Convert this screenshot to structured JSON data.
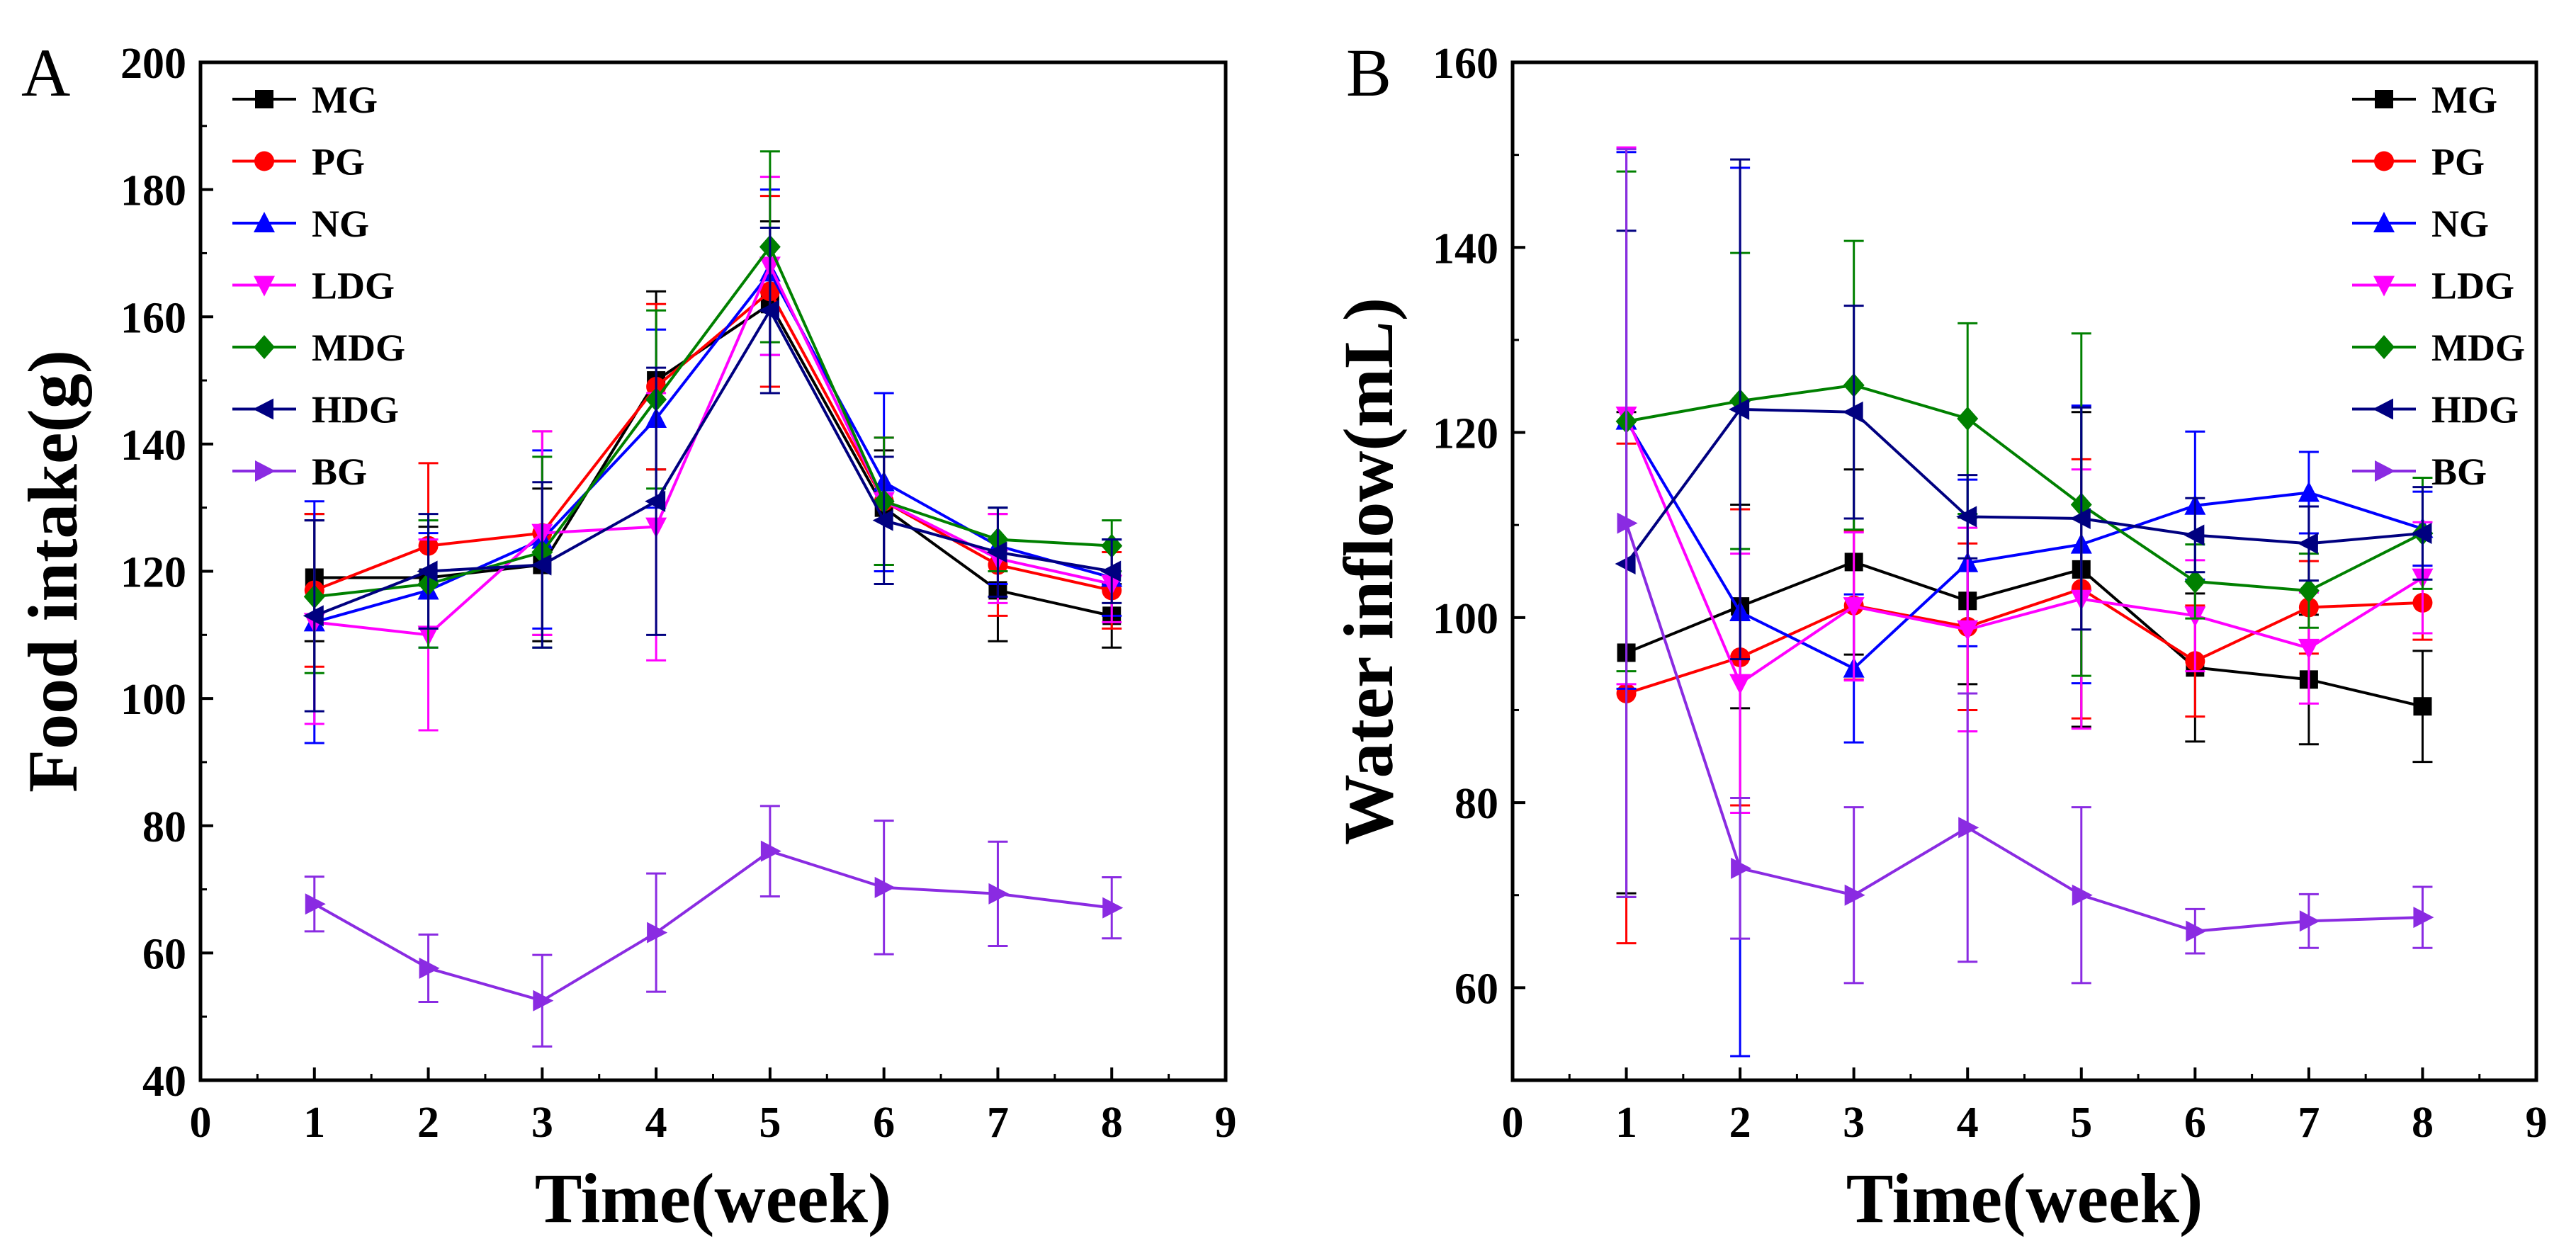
{
  "figure": {
    "background": "#ffffff"
  },
  "chart_data": [
    {
      "id": "A",
      "type": "line",
      "panel_label": "A",
      "title": "",
      "xlabel": "Time(week)",
      "ylabel": "Food intake(g)",
      "xlim": [
        0,
        9
      ],
      "ylim": [
        40,
        200
      ],
      "xticks": [
        0,
        1,
        2,
        3,
        4,
        5,
        6,
        7,
        8,
        9
      ],
      "yticks": [
        40,
        60,
        80,
        100,
        120,
        140,
        160,
        180,
        200
      ],
      "grid": false,
      "legend_position": "top-left",
      "x": [
        1,
        2,
        3,
        4,
        5,
        6,
        7,
        8
      ],
      "series": [
        {
          "name": "MG",
          "color": "#000000",
          "marker": "square",
          "values": [
            119,
            119,
            121,
            150,
            162,
            130,
            117,
            113
          ],
          "errors": [
            10,
            8,
            12,
            14,
            13,
            9,
            8,
            5
          ]
        },
        {
          "name": "PG",
          "color": "#ff0000",
          "marker": "circle",
          "values": [
            117,
            124,
            126,
            149,
            164,
            131,
            121,
            117
          ],
          "errors": [
            12,
            13,
            16,
            13,
            15,
            10,
            8,
            6
          ]
        },
        {
          "name": "NG",
          "color": "#0000ff",
          "marker": "triangle-up",
          "values": [
            112,
            117,
            125,
            144,
            167,
            134,
            124,
            119
          ],
          "errors": [
            19,
            9,
            14,
            14,
            13,
            14,
            6,
            6
          ]
        },
        {
          "name": "LDG",
          "color": "#ff00ff",
          "marker": "triangle-down",
          "values": [
            112,
            110,
            126,
            127,
            168,
            131,
            122,
            118
          ],
          "errors": [
            16,
            15,
            16,
            21,
            14,
            10,
            7,
            6
          ]
        },
        {
          "name": "MDG",
          "color": "#008000",
          "marker": "diamond",
          "values": [
            116,
            118,
            123,
            147,
            171,
            131,
            125,
            124
          ],
          "errors": [
            12,
            10,
            15,
            14,
            15,
            10,
            5,
            4
          ]
        },
        {
          "name": "HDG",
          "color": "#000080",
          "marker": "triangle-left",
          "values": [
            113,
            120,
            121,
            131,
            161,
            128,
            123,
            120
          ],
          "errors": [
            15,
            9,
            13,
            21,
            13,
            10,
            7,
            5
          ]
        },
        {
          "name": "BG",
          "color": "#8a2be2",
          "marker": "triangle-right",
          "values": [
            67.7,
            57.6,
            52.5,
            63.2,
            76.0,
            70.3,
            69.3,
            67.1
          ],
          "errors": [
            4.3,
            5.3,
            7.2,
            9.3,
            7.1,
            10.5,
            8.2,
            4.8
          ]
        }
      ]
    },
    {
      "id": "B",
      "type": "line",
      "panel_label": "B",
      "title": "",
      "xlabel": "Time(week)",
      "ylabel": "Water inflow(mL)",
      "xlim": [
        0,
        9
      ],
      "ylim": [
        50,
        160
      ],
      "xticks": [
        0,
        1,
        2,
        3,
        4,
        5,
        6,
        7,
        8,
        9
      ],
      "yticks": [
        60,
        80,
        100,
        120,
        140,
        160
      ],
      "grid": false,
      "legend_position": "top-right",
      "x": [
        1,
        2,
        3,
        4,
        5,
        6,
        7,
        8
      ],
      "series": [
        {
          "name": "MG",
          "color": "#000000",
          "marker": "square",
          "values": [
            96.2,
            101.2,
            106.0,
            101.8,
            105.2,
            94.6,
            93.3,
            90.4
          ],
          "errors": [
            26,
            11,
            10,
            9,
            17,
            8,
            7,
            6
          ]
        },
        {
          "name": "PG",
          "color": "#ff0000",
          "marker": "circle",
          "values": [
            91.8,
            95.7,
            101.3,
            99.0,
            103.1,
            95.3,
            101.1,
            101.6
          ],
          "errors": [
            27,
            16,
            8,
            9,
            14,
            6,
            5,
            4
          ]
        },
        {
          "name": "NG",
          "color": "#0000ff",
          "marker": "triangle-up",
          "values": [
            121.3,
            100.6,
            94.5,
            105.9,
            107.9,
            112.1,
            113.5,
            109.6
          ],
          "errors": [
            29,
            48,
            8,
            9,
            15,
            8,
            4.4,
            4
          ]
        },
        {
          "name": "LDG",
          "color": "#ff00ff",
          "marker": "triangle-down",
          "values": [
            121.8,
            92.9,
            101.2,
            98.7,
            102.0,
            100.2,
            96.7,
            104.3
          ],
          "errors": [
            29,
            14,
            8,
            11,
            14,
            6,
            6,
            6
          ]
        },
        {
          "name": "MDG",
          "color": "#008000",
          "marker": "diamond",
          "values": [
            121.2,
            123.4,
            125.1,
            121.5,
            112.2,
            103.9,
            102.9,
            109.1
          ],
          "errors": [
            27,
            16,
            15.6,
            10.3,
            18.5,
            4,
            4,
            6
          ]
        },
        {
          "name": "HDG",
          "color": "#000080",
          "marker": "triangle-left",
          "values": [
            105.8,
            122.5,
            122.2,
            110.9,
            110.7,
            108.9,
            108.0,
            109.1
          ],
          "errors": [
            36,
            27,
            11.5,
            4.5,
            12,
            4,
            4,
            5
          ]
        },
        {
          "name": "BG",
          "color": "#8a2be2",
          "marker": "triangle-right",
          "values": [
            110.2,
            72.9,
            70.0,
            77.3,
            70.0,
            66.1,
            67.2,
            67.6
          ],
          "errors": [
            40.4,
            7.6,
            9.5,
            14.5,
            9.5,
            2.4,
            2.9,
            3.3
          ]
        }
      ]
    }
  ]
}
